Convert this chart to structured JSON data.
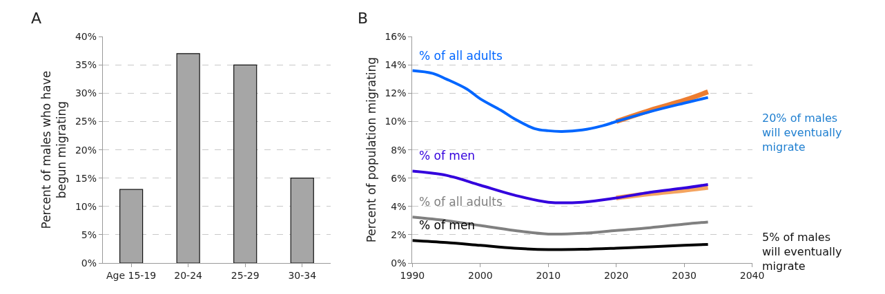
{
  "chart_data": [
    {
      "type": "bar",
      "title": "A",
      "ylabel": "Percent of males who have\nbegun migrating",
      "categories": [
        "Age 15-19",
        "20-24",
        "25-29",
        "30-34"
      ],
      "values": [
        13,
        37,
        35,
        15
      ],
      "color": "#a6a6a6",
      "ylim": [
        0,
        40
      ],
      "yticks": [
        {
          "value": 0,
          "label": "0%"
        },
        {
          "value": 5,
          "label": "5%"
        },
        {
          "value": 10,
          "label": "10%"
        },
        {
          "value": 15,
          "label": "15%"
        },
        {
          "value": 20,
          "label": "20%"
        },
        {
          "value": 25,
          "label": "25%"
        },
        {
          "value": 30,
          "label": "30%"
        },
        {
          "value": 35,
          "label": "35%"
        },
        {
          "value": 40,
          "label": "40%"
        }
      ],
      "grid": "y",
      "legend": false
    },
    {
      "type": "line",
      "title": "B",
      "ylabel": "Percent of population migrating",
      "x": [
        1990,
        1993,
        1995,
        1998,
        2000,
        2003,
        2005,
        2008,
        2010,
        2012,
        2015,
        2018,
        2020,
        2025,
        2030,
        2033.5
      ],
      "series": [
        {
          "color": "#ed7d31",
          "x": [
            2020,
            2025,
            2030,
            2033.5
          ],
          "values": [
            10.0,
            10.8,
            11.5,
            12.1
          ]
        },
        {
          "name": "% of all adults",
          "color": "#0066ff",
          "values": [
            13.6,
            13.4,
            13.0,
            12.3,
            11.6,
            10.8,
            10.2,
            9.5,
            9.35,
            9.3,
            9.4,
            9.7,
            10.0,
            10.7,
            11.3,
            11.7
          ]
        },
        {
          "color": "#f4a460",
          "x": [
            2020,
            2025,
            2030,
            2033.5
          ],
          "values": [
            4.6,
            4.9,
            5.15,
            5.35
          ]
        },
        {
          "name": "% of men",
          "color": "#3300dd",
          "x": [
            1990,
            1995,
            2000,
            2005,
            2010,
            2015,
            2020,
            2025,
            2030,
            2033.5
          ],
          "values": [
            6.5,
            6.2,
            5.5,
            4.8,
            4.3,
            4.3,
            4.6,
            5.0,
            5.3,
            5.55
          ]
        },
        {
          "name": "% of all adults",
          "color": "#808080",
          "x": [
            1990,
            1995,
            2000,
            2005,
            2010,
            2015,
            2020,
            2025,
            2030,
            2033.5
          ],
          "values": [
            3.25,
            3.0,
            2.65,
            2.3,
            2.05,
            2.1,
            2.3,
            2.5,
            2.75,
            2.9
          ]
        },
        {
          "name": "% of men",
          "color": "#000000",
          "x": [
            1990,
            1995,
            2000,
            2005,
            2010,
            2015,
            2020,
            2025,
            2030,
            2033.5
          ],
          "values": [
            1.6,
            1.45,
            1.25,
            1.05,
            0.95,
            0.97,
            1.05,
            1.15,
            1.25,
            1.32
          ]
        }
      ],
      "xlim": [
        1990,
        2040
      ],
      "xticks": [
        1990,
        2000,
        2010,
        2020,
        2030,
        2040
      ],
      "ylim": [
        0,
        16
      ],
      "yticks": [
        {
          "value": 0,
          "label": "0%"
        },
        {
          "value": 2,
          "label": "2%"
        },
        {
          "value": 4,
          "label": "4%"
        },
        {
          "value": 6,
          "label": "6%"
        },
        {
          "value": 8,
          "label": "8%"
        },
        {
          "value": 10,
          "label": "10%"
        },
        {
          "value": 12,
          "label": "12%"
        },
        {
          "value": 14,
          "label": "14%"
        },
        {
          "value": 16,
          "label": "16%"
        }
      ],
      "annotations": [
        "20% of males\nwill eventually\nmigrate",
        "5% of males\nwill eventually\nmigrate"
      ],
      "grid": "y",
      "legend": false
    }
  ]
}
